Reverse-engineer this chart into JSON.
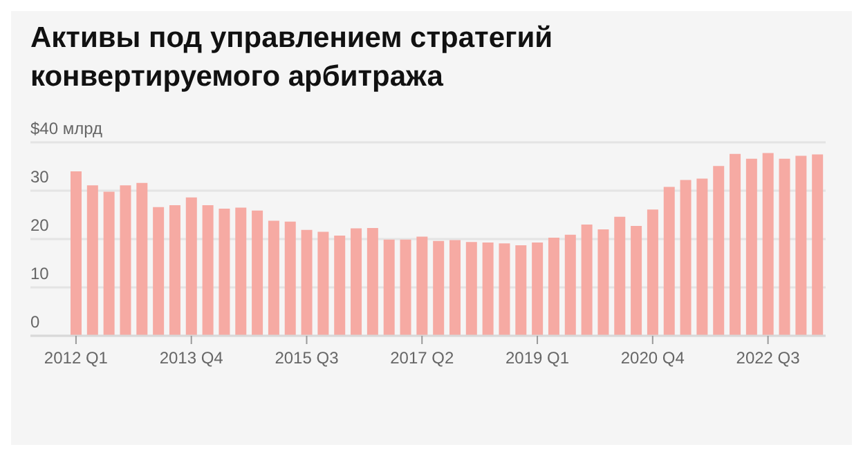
{
  "chart_data": {
    "type": "bar",
    "title": "Активы под управлением стратегий конвертируемого арбитража",
    "categories": [
      "2012 Q1",
      null,
      null,
      null,
      null,
      null,
      null,
      "2013 Q4",
      null,
      null,
      null,
      null,
      null,
      null,
      "2015 Q3",
      null,
      null,
      null,
      null,
      null,
      null,
      "2017 Q2",
      null,
      null,
      null,
      null,
      null,
      null,
      "2019 Q1",
      null,
      null,
      null,
      null,
      null,
      null,
      "2020 Q4",
      null,
      null,
      null,
      null,
      null,
      null,
      "2022 Q3",
      null,
      null,
      null
    ],
    "values": [
      34.0,
      31.1,
      29.8,
      31.1,
      31.6,
      26.6,
      27.0,
      28.6,
      27.0,
      26.3,
      26.5,
      25.9,
      23.8,
      23.6,
      21.9,
      21.5,
      20.7,
      22.2,
      22.3,
      19.9,
      19.9,
      20.5,
      19.6,
      19.8,
      19.4,
      19.3,
      19.1,
      18.7,
      19.3,
      20.3,
      20.9,
      23.0,
      22.0,
      24.6,
      22.7,
      26.1,
      30.8,
      32.2,
      32.5,
      35.1,
      37.6,
      36.6,
      37.8,
      36.6,
      37.2,
      37.5
    ],
    "color": "#f6aaa3",
    "ylim": [
      0,
      40
    ],
    "yticks": [
      0,
      10,
      20,
      30,
      {
        "value": 40,
        "label": "$40 млрд"
      }
    ],
    "grid": "y"
  }
}
